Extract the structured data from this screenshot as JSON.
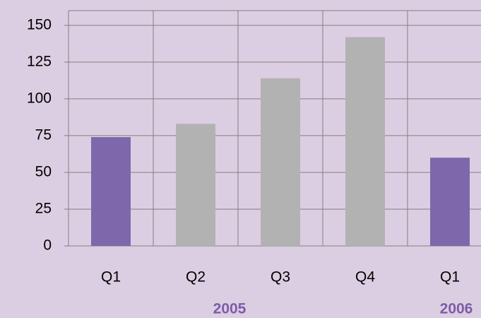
{
  "chart_data": {
    "type": "bar",
    "categories": [
      "Q1",
      "Q2",
      "Q3",
      "Q4",
      "Q1"
    ],
    "values": [
      74,
      83,
      114,
      142,
      60
    ],
    "colors": [
      "#7f67ab",
      "#b2b2b2",
      "#b2b2b2",
      "#b2b2b2",
      "#7f67ab"
    ],
    "year_labels": [
      "2005",
      "2006"
    ],
    "ylim": [
      0,
      160
    ],
    "yticks": [
      0,
      25,
      50,
      75,
      100,
      125,
      150
    ],
    "grid": true
  }
}
